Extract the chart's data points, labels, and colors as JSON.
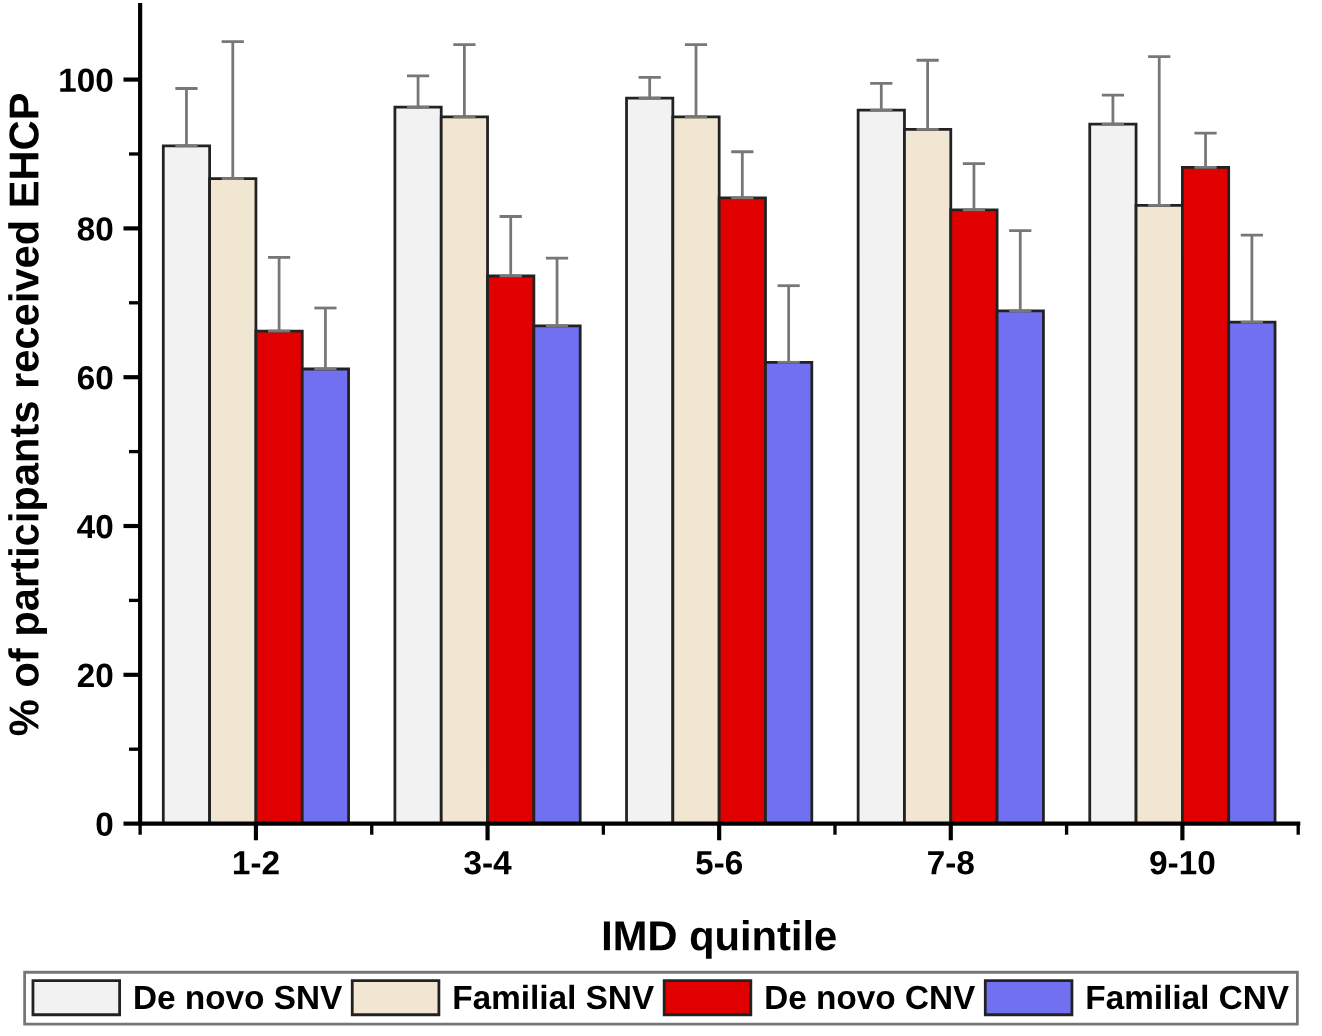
{
  "chart_data": {
    "type": "bar",
    "xlabel": "IMD quintile",
    "ylabel": "% of participants received EHCP",
    "categories": [
      "1-2",
      "3-4",
      "5-6",
      "7-8",
      "9-10"
    ],
    "series": [
      {
        "name": "De novo SNV",
        "color": "#f2f2f2",
        "values": [
          91.1,
          96.3,
          97.5,
          95.9,
          94.0
        ],
        "errors": [
          [
            91.1,
            98.8
          ],
          [
            96.3,
            100.5
          ],
          [
            97.5,
            100.3
          ],
          [
            95.9,
            99.5
          ],
          [
            94.0,
            97.9
          ]
        ]
      },
      {
        "name": "Familial SNV",
        "color": "#f0e6d2",
        "values": [
          86.7,
          95.0,
          95.0,
          93.3,
          83.1
        ],
        "errors": [
          [
            86.7,
            105.1
          ],
          [
            95.0,
            104.7
          ],
          [
            95.0,
            104.7
          ],
          [
            93.3,
            102.6
          ],
          [
            83.1,
            103.1
          ]
        ]
      },
      {
        "name": "De novo CNV",
        "color": "#e00000",
        "values": [
          66.2,
          73.6,
          84.1,
          82.5,
          88.2
        ],
        "errors": [
          [
            66.2,
            76.1
          ],
          [
            73.6,
            81.6
          ],
          [
            84.1,
            90.3
          ],
          [
            82.5,
            88.7
          ],
          [
            88.2,
            92.8
          ]
        ]
      },
      {
        "name": "Familial CNV",
        "color": "#7070f0",
        "values": [
          61.1,
          66.9,
          62.0,
          68.9,
          67.4
        ],
        "errors": [
          [
            61.1,
            69.3
          ],
          [
            66.9,
            76.0
          ],
          [
            62.0,
            72.3
          ],
          [
            68.9,
            79.7
          ],
          [
            67.4,
            79.1
          ]
        ]
      }
    ],
    "ylim": [
      0,
      110
    ],
    "yticks": [
      0,
      {
        "value": 10,
        "label": null
      },
      20,
      {
        "value": 30,
        "label": null
      },
      40,
      {
        "value": 50,
        "label": null
      },
      60,
      {
        "value": 70,
        "label": null
      },
      80,
      {
        "value": 90,
        "label": null
      },
      100
    ],
    "legend": "bottom",
    "grid": false
  }
}
